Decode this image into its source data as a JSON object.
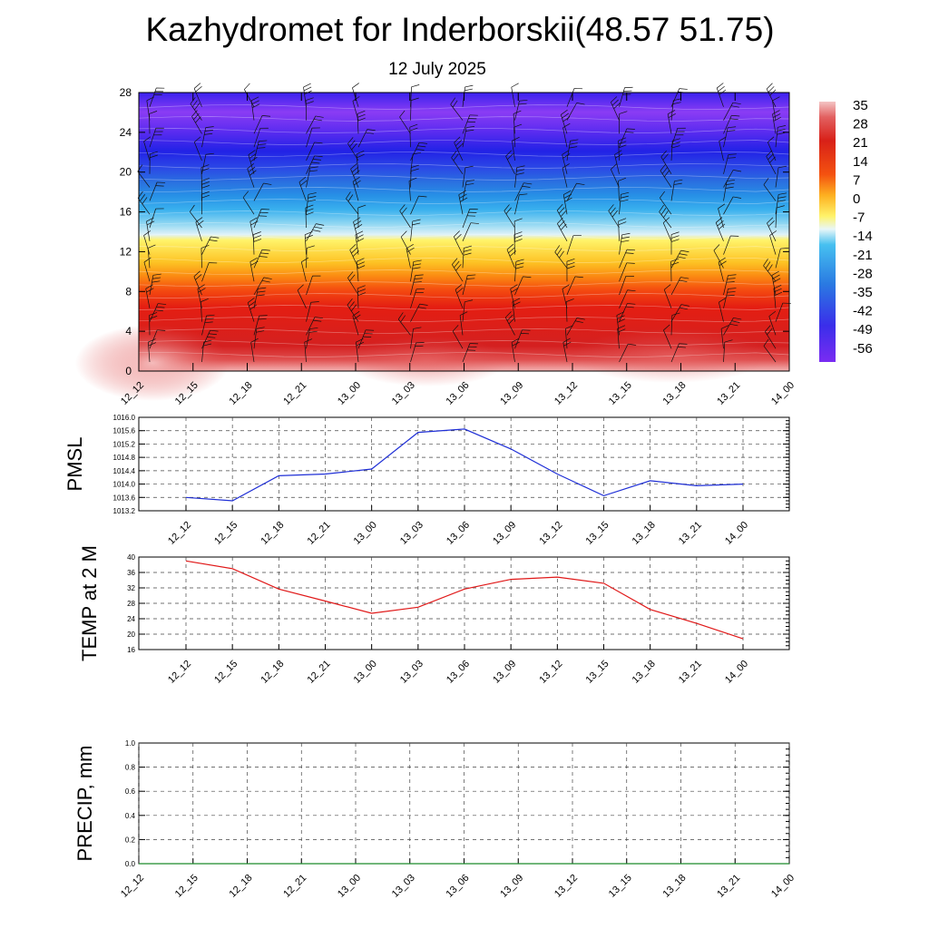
{
  "title": "Kazhydromet for Inderborskii(48.57 51.75)",
  "subtitle": "12 July 2025",
  "colors": {
    "pmsl_line": "#1f2fd6",
    "temp_line": "#e01818",
    "precip_line": "#1a8a2a",
    "grid": "#555555"
  },
  "chart_data": [
    {
      "type": "heatmap",
      "ylim": [
        0,
        28
      ],
      "yticks": [
        "0",
        "4",
        "8",
        "12",
        "16",
        "20",
        "24",
        "28"
      ],
      "xticks": [
        "12_12",
        "12_15",
        "12_18",
        "12_21",
        "13_00",
        "13_03",
        "13_06",
        "13_09",
        "13_12",
        "13_15",
        "13_18",
        "13_21",
        "14_00"
      ],
      "colorbar_labels": [
        "35",
        "28",
        "21",
        "14",
        "7",
        "0",
        "-7",
        "-14",
        "-21",
        "-28",
        "-35",
        "-42",
        "-49",
        "-56"
      ],
      "colorbar_range": [
        -60,
        38
      ],
      "overlay": "wind barbs"
    },
    {
      "type": "line",
      "ylabel": "PMSL",
      "x": [
        "12_12",
        "12_15",
        "12_18",
        "12_21",
        "13_00",
        "13_03",
        "13_06",
        "13_09",
        "13_12",
        "13_15",
        "13_18",
        "13_21",
        "14_00"
      ],
      "xticks": [
        "12_12",
        "12_15",
        "12_18",
        "12_21",
        "13_00",
        "13_03",
        "13_06",
        "13_09",
        "13_12",
        "13_15",
        "13_18",
        "13_21",
        "14_00"
      ],
      "series": [
        {
          "values": [
            1013.6,
            1013.5,
            1014.25,
            1014.3,
            1014.45,
            1015.55,
            1015.65,
            1015.05,
            1014.3,
            1013.65,
            1014.1,
            1013.95,
            1014.0
          ]
        }
      ],
      "ylim": [
        1013.2,
        1016.0
      ],
      "yticks": [
        "1013.2",
        "1013.6",
        "1014.0",
        "1014.4",
        "1014.8",
        "1015.2",
        "1015.6",
        "1016.0"
      ],
      "grid": true
    },
    {
      "type": "line",
      "ylabel": "TEMP at 2 M",
      "x": [
        "12_12",
        "12_15",
        "12_18",
        "12_21",
        "13_00",
        "13_03",
        "13_06",
        "13_09",
        "13_12",
        "13_15",
        "13_18",
        "13_21",
        "14_00"
      ],
      "xticks": [
        "12_12",
        "12_15",
        "12_18",
        "12_21",
        "13_00",
        "13_03",
        "13_06",
        "13_09",
        "13_12",
        "13_15",
        "13_18",
        "13_21",
        "14_00"
      ],
      "series": [
        {
          "values": [
            39.0,
            37.0,
            31.7,
            28.6,
            25.4,
            27.0,
            31.7,
            34.2,
            34.8,
            33.2,
            26.4,
            22.8,
            18.8
          ]
        }
      ],
      "ylim": [
        16,
        40
      ],
      "yticks": [
        "16",
        "20",
        "24",
        "28",
        "32",
        "36",
        "40"
      ],
      "grid": true
    },
    {
      "type": "line",
      "ylabel": "PRECIP, mm",
      "x": [
        "12_12",
        "12_15",
        "12_18",
        "12_21",
        "13_00",
        "13_03",
        "13_06",
        "13_09",
        "13_12",
        "13_15",
        "13_18",
        "13_21",
        "14_00"
      ],
      "xticks": [
        "12_12",
        "12_15",
        "12_18",
        "12_21",
        "13_00",
        "13_03",
        "13_06",
        "13_09",
        "13_12",
        "13_15",
        "13_18",
        "13_21",
        "14_00"
      ],
      "series": [
        {
          "values": [
            0,
            0,
            0,
            0,
            0,
            0,
            0,
            0,
            0,
            0,
            0,
            0,
            0
          ]
        }
      ],
      "ylim": [
        0.0,
        1.0
      ],
      "yticks": [
        "0.0",
        "0.2",
        "0.4",
        "0.6",
        "0.8",
        "1.0"
      ],
      "grid": true
    }
  ]
}
